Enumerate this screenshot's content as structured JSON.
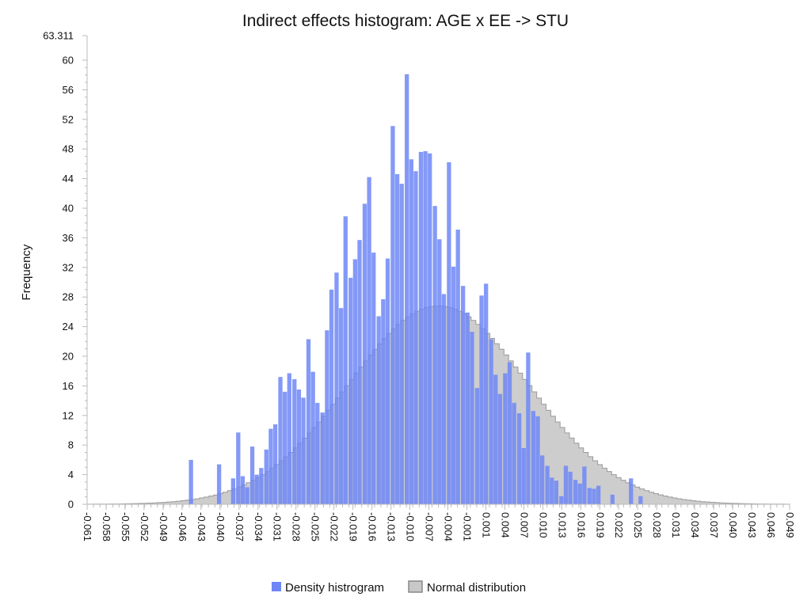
{
  "chart_data": {
    "type": "bar",
    "title": "Indirect effects histogram: AGE x EE -> STU",
    "xlabel": "",
    "ylabel": "Frequency",
    "ylim": [
      0,
      63.311
    ],
    "xlim": [
      -0.061,
      0.049
    ],
    "y_ticks": [
      "0",
      "4",
      "8",
      "12",
      "16",
      "20",
      "24",
      "28",
      "32",
      "36",
      "40",
      "44",
      "48",
      "52",
      "56",
      "60",
      "63.311"
    ],
    "x_ticks": [
      "-0.061",
      "-0.058",
      "-0.055",
      "-0.052",
      "-0.049",
      "-0.046",
      "-0.043",
      "-0.040",
      "-0.037",
      "-0.034",
      "-0.031",
      "-0.028",
      "-0.025",
      "-0.022",
      "-0.019",
      "-0.016",
      "-0.013",
      "-0.010",
      "-0.007",
      "-0.004",
      "-0.001",
      "0.001",
      "0.004",
      "0.007",
      "0.010",
      "0.013",
      "0.016",
      "0.019",
      "0.022",
      "0.025",
      "0.028",
      "0.031",
      "0.034",
      "0.037",
      "0.040",
      "0.043",
      "0.046",
      "0.049"
    ],
    "bin_width": 0.0007333,
    "series": [
      {
        "name": "Density histrogram",
        "color": "#6f87f6",
        "bins": [
          {
            "x": -0.0447,
            "y": 6.0
          },
          {
            "x": -0.0403,
            "y": 5.4
          },
          {
            "x": -0.0381,
            "y": 3.5
          },
          {
            "x": -0.0373,
            "y": 9.7
          },
          {
            "x": -0.0366,
            "y": 3.8
          },
          {
            "x": -0.0359,
            "y": 2.3
          },
          {
            "x": -0.0351,
            "y": 7.8
          },
          {
            "x": -0.0344,
            "y": 4.0
          },
          {
            "x": -0.0337,
            "y": 4.9
          },
          {
            "x": -0.0329,
            "y": 7.4
          },
          {
            "x": -0.0322,
            "y": 10.2
          },
          {
            "x": -0.0315,
            "y": 10.8
          },
          {
            "x": -0.0307,
            "y": 17.2
          },
          {
            "x": -0.03,
            "y": 15.2
          },
          {
            "x": -0.0293,
            "y": 17.7
          },
          {
            "x": -0.0285,
            "y": 16.9
          },
          {
            "x": -0.0278,
            "y": 15.5
          },
          {
            "x": -0.0271,
            "y": 14.4
          },
          {
            "x": -0.0263,
            "y": 22.3
          },
          {
            "x": -0.0256,
            "y": 17.9
          },
          {
            "x": -0.0249,
            "y": 13.7
          },
          {
            "x": -0.0241,
            "y": 12.4
          },
          {
            "x": -0.0234,
            "y": 23.5
          },
          {
            "x": -0.0227,
            "y": 29.0
          },
          {
            "x": -0.0219,
            "y": 31.3
          },
          {
            "x": -0.0212,
            "y": 26.5
          },
          {
            "x": -0.0205,
            "y": 38.9
          },
          {
            "x": -0.0197,
            "y": 30.6
          },
          {
            "x": -0.019,
            "y": 33.1
          },
          {
            "x": -0.0183,
            "y": 35.7
          },
          {
            "x": -0.0175,
            "y": 40.6
          },
          {
            "x": -0.0168,
            "y": 44.2
          },
          {
            "x": -0.0161,
            "y": 34.0
          },
          {
            "x": -0.0153,
            "y": 25.4
          },
          {
            "x": -0.0146,
            "y": 27.7
          },
          {
            "x": -0.0139,
            "y": 33.2
          },
          {
            "x": -0.0131,
            "y": 51.1
          },
          {
            "x": -0.0124,
            "y": 44.6
          },
          {
            "x": -0.0117,
            "y": 43.3
          },
          {
            "x": -0.0109,
            "y": 58.1
          },
          {
            "x": -0.0102,
            "y": 46.6
          },
          {
            "x": -0.0095,
            "y": 45.0
          },
          {
            "x": -0.0087,
            "y": 47.6
          },
          {
            "x": -0.008,
            "y": 47.7
          },
          {
            "x": -0.0073,
            "y": 47.4
          },
          {
            "x": -0.0065,
            "y": 40.3
          },
          {
            "x": -0.0058,
            "y": 35.8
          },
          {
            "x": -0.0051,
            "y": 28.4
          },
          {
            "x": -0.0043,
            "y": 46.2
          },
          {
            "x": -0.0036,
            "y": 32.1
          },
          {
            "x": -0.0029,
            "y": 37.1
          },
          {
            "x": -0.0021,
            "y": 29.5
          },
          {
            "x": -0.0014,
            "y": 25.9
          },
          {
            "x": -0.0007,
            "y": 23.3
          },
          {
            "x": 0.0001,
            "y": 15.7
          },
          {
            "x": 0.0008,
            "y": 28.2
          },
          {
            "x": 0.0015,
            "y": 29.8
          },
          {
            "x": 0.0023,
            "y": 22.3
          },
          {
            "x": 0.003,
            "y": 17.5
          },
          {
            "x": 0.0037,
            "y": 14.9
          },
          {
            "x": 0.0045,
            "y": 17.7
          },
          {
            "x": 0.0052,
            "y": 19.2
          },
          {
            "x": 0.0059,
            "y": 13.7
          },
          {
            "x": 0.0067,
            "y": 12.3
          },
          {
            "x": 0.0074,
            "y": 7.6
          },
          {
            "x": 0.0081,
            "y": 20.5
          },
          {
            "x": 0.0089,
            "y": 12.6
          },
          {
            "x": 0.0096,
            "y": 11.9
          },
          {
            "x": 0.0103,
            "y": 6.6
          },
          {
            "x": 0.0111,
            "y": 5.2
          },
          {
            "x": 0.0118,
            "y": 3.6
          },
          {
            "x": 0.0125,
            "y": 3.2
          },
          {
            "x": 0.0133,
            "y": 1.1
          },
          {
            "x": 0.014,
            "y": 5.2
          },
          {
            "x": 0.0147,
            "y": 4.4
          },
          {
            "x": 0.0155,
            "y": 3.3
          },
          {
            "x": 0.0162,
            "y": 2.8
          },
          {
            "x": 0.0169,
            "y": 5.1
          },
          {
            "x": 0.0177,
            "y": 2.2
          },
          {
            "x": 0.0184,
            "y": 2.1
          },
          {
            "x": 0.0191,
            "y": 2.5
          },
          {
            "x": 0.0213,
            "y": 1.3
          },
          {
            "x": 0.0242,
            "y": 3.5
          },
          {
            "x": 0.0257,
            "y": 1.1
          }
        ]
      },
      {
        "name": "Normal distribution",
        "color": "#b3b3b3",
        "mean": -0.006,
        "sd": 0.0141,
        "peak": 26.8
      }
    ],
    "legend_position": "bottom-center",
    "grid": false
  }
}
